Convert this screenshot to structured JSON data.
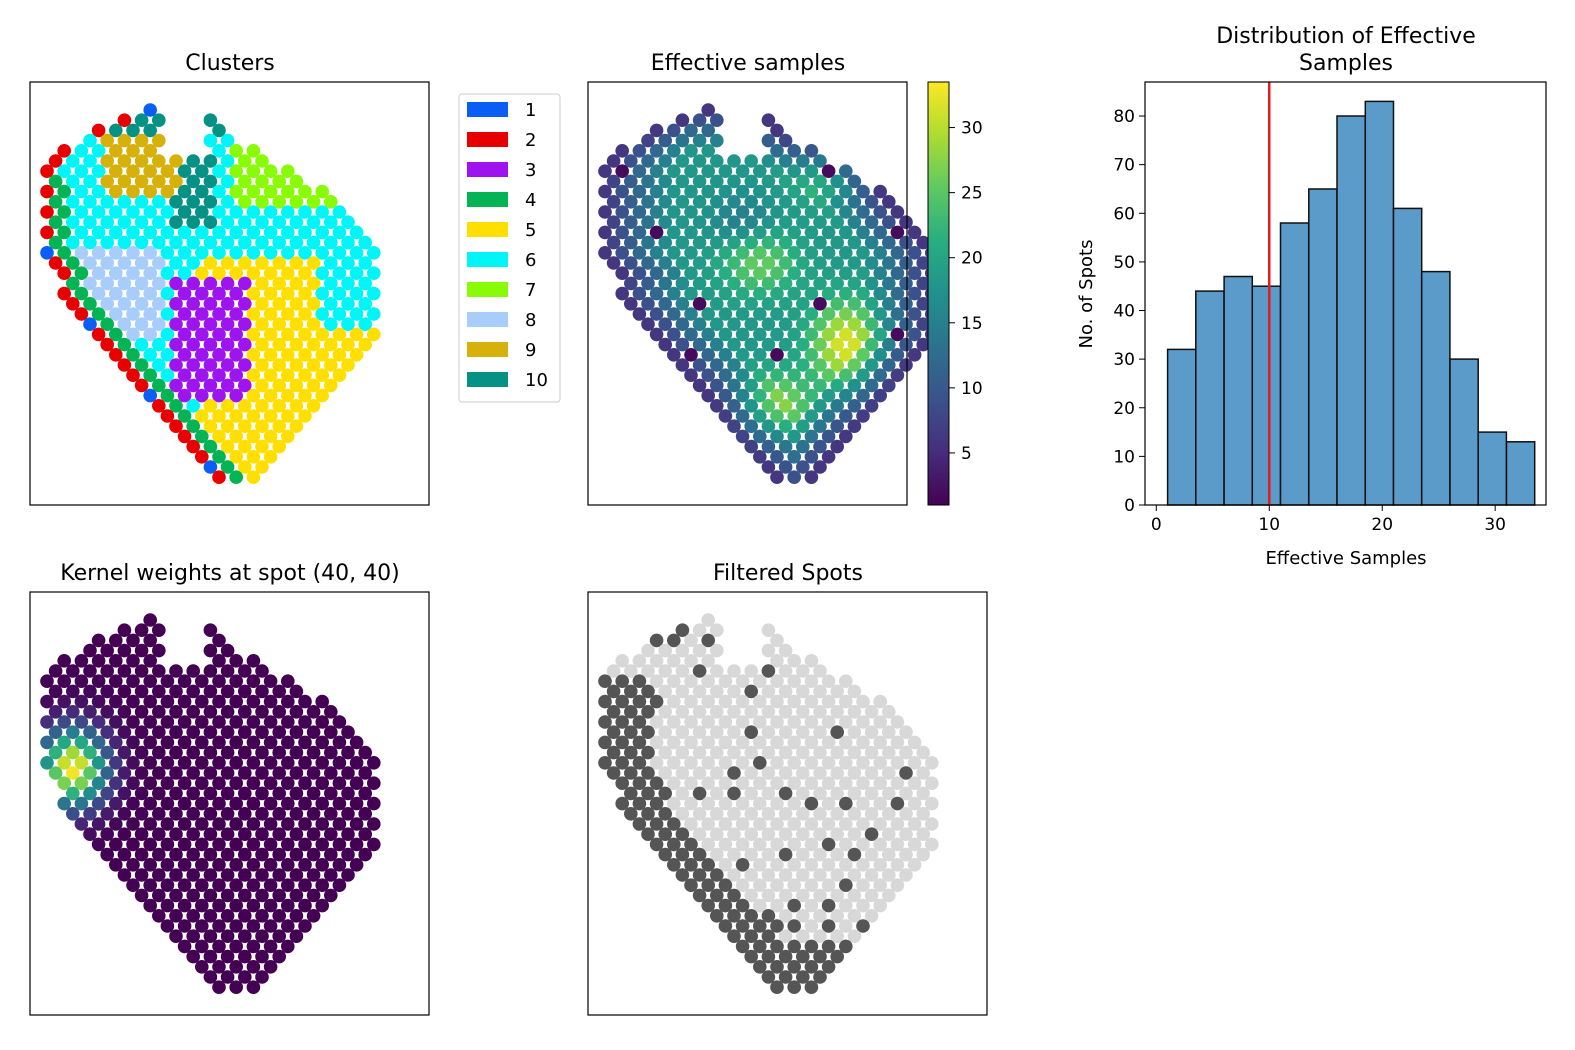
{
  "chart_data": [
    {
      "type": "scatter",
      "title": "Clusters",
      "legend_position": "right-outside",
      "legend": [
        {
          "label": "1",
          "color": "#0a5ef5"
        },
        {
          "label": "2",
          "color": "#e80000"
        },
        {
          "label": "3",
          "color": "#9d14ef"
        },
        {
          "label": "4",
          "color": "#04b353"
        },
        {
          "label": "5",
          "color": "#ffdf00"
        },
        {
          "label": "6",
          "color": "#00f6f6"
        },
        {
          "label": "7",
          "color": "#89fb06"
        },
        {
          "label": "8",
          "color": "#a8cdfa"
        },
        {
          "label": "9",
          "color": "#d6b00b"
        },
        {
          "label": "10",
          "color": "#069185"
        }
      ]
    },
    {
      "type": "scatter",
      "title": "Effective samples",
      "colormap": "viridis",
      "colorbar": {
        "min": 1,
        "max": 33.5,
        "ticks": [
          5,
          10,
          15,
          20,
          25,
          30
        ],
        "tick_labels": [
          "5",
          "10",
          "15",
          "20",
          "25",
          "30"
        ]
      }
    },
    {
      "type": "bar",
      "title_lines": [
        "Distribution of Effective",
        "Samples"
      ],
      "xlabel": "Effective Samples",
      "ylabel": "No. of Spots",
      "xlim": [
        -1,
        34.5
      ],
      "ylim": [
        0,
        87
      ],
      "xticks": [
        0,
        10,
        20,
        30
      ],
      "xtick_labels": [
        "0",
        "10",
        "20",
        "30"
      ],
      "yticks": [
        0,
        10,
        20,
        30,
        40,
        50,
        60,
        70,
        80
      ],
      "ytick_labels": [
        "0",
        "10",
        "20",
        "30",
        "40",
        "50",
        "60",
        "70",
        "80"
      ],
      "bin_width": 2.5,
      "bin_start": 1,
      "values": [
        32,
        44,
        47,
        45,
        58,
        65,
        80,
        83,
        61,
        48,
        30,
        15,
        13
      ],
      "bar_color": "#5a9bc9",
      "threshold": 10,
      "threshold_color": "#e81a1a"
    },
    {
      "type": "scatter",
      "title": "Kernel weights at spot (40, 40)",
      "colormap": "viridis"
    },
    {
      "type": "scatter",
      "title": "Filtered Spots",
      "colors": {
        "kept": "#d8d8d8",
        "filtered": "#555555"
      }
    }
  ]
}
